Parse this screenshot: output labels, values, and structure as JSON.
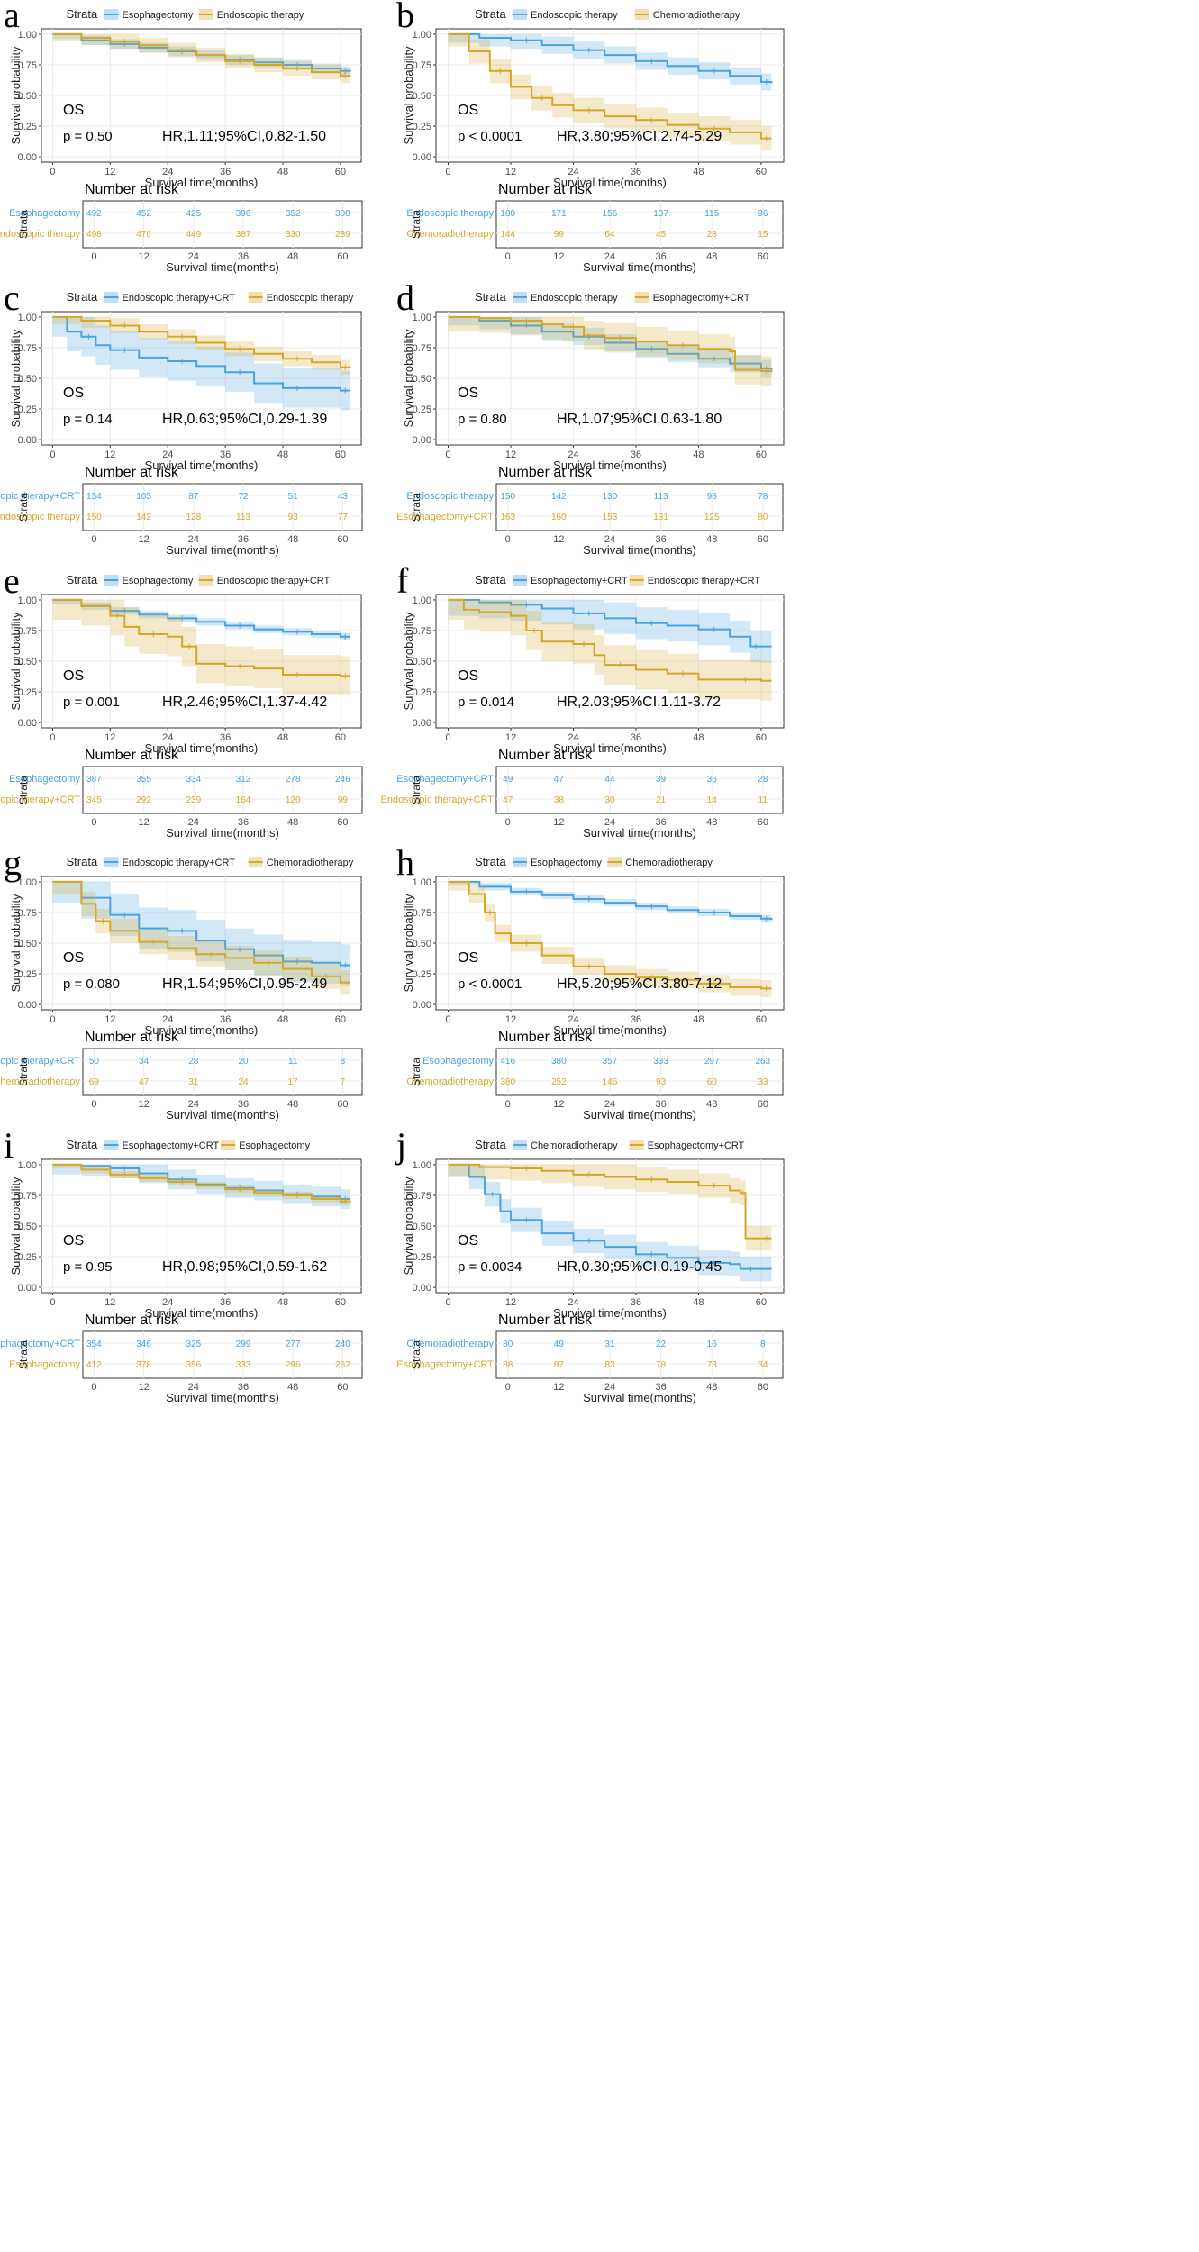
{
  "figure": {
    "common": {
      "legend_title": "Strata",
      "ylabel": "Survival probability",
      "xlabel": "Survival time(months)",
      "risk_title": "Number at risk",
      "risk_ylabel": "Strata",
      "annotation_os": "OS",
      "x_ticks": [
        0,
        12,
        24,
        36,
        48,
        60
      ],
      "y_ticks": [
        "0.00",
        "0.25",
        "0.50",
        "0.75",
        "1.00"
      ],
      "colors": {
        "series1": "#4aa3df",
        "series2": "#d4a92a",
        "grid": "#ebebeb",
        "border": "#333333"
      }
    }
  },
  "chart_data": [
    {
      "panel": "a",
      "type": "line",
      "xlim": [
        0,
        62
      ],
      "ylim": [
        0,
        1
      ],
      "title": "",
      "xlabel": "Survival time(months)",
      "ylabel": "Survival probability",
      "p_text": "p = 0.50",
      "hr_text": "HR,1.11;95%CI,0.82-1.50",
      "series": [
        {
          "name": "Esophagectomy",
          "color": "#4aa3df",
          "x": [
            0,
            6,
            12,
            18,
            24,
            30,
            36,
            42,
            48,
            54,
            60,
            62
          ],
          "y": [
            1.0,
            0.95,
            0.92,
            0.89,
            0.86,
            0.83,
            0.79,
            0.77,
            0.75,
            0.72,
            0.7,
            0.69
          ],
          "ci_width": 0.04,
          "risk": [
            492,
            452,
            425,
            396,
            352,
            308
          ]
        },
        {
          "name": "Endoscopic therapy",
          "color": "#d4a92a",
          "x": [
            0,
            6,
            12,
            18,
            24,
            30,
            36,
            42,
            48,
            54,
            60,
            62
          ],
          "y": [
            1.0,
            0.97,
            0.94,
            0.91,
            0.87,
            0.83,
            0.78,
            0.75,
            0.72,
            0.69,
            0.66,
            0.65
          ],
          "ci_width": 0.06,
          "risk": [
            498,
            476,
            449,
            387,
            330,
            289
          ]
        }
      ]
    },
    {
      "panel": "b",
      "type": "line",
      "xlim": [
        0,
        62
      ],
      "ylim": [
        0,
        1
      ],
      "title": "",
      "xlabel": "Survival time(months)",
      "ylabel": "Survival probability",
      "p_text": "p < 0.0001",
      "hr_text": "HR,3.80;95%CI,2.74-5.29",
      "series": [
        {
          "name": "Endoscopic therapy",
          "color": "#4aa3df",
          "x": [
            0,
            6,
            12,
            18,
            24,
            30,
            36,
            42,
            48,
            54,
            60,
            62
          ],
          "y": [
            1.0,
            0.97,
            0.95,
            0.91,
            0.87,
            0.83,
            0.78,
            0.74,
            0.7,
            0.66,
            0.61,
            0.6
          ],
          "ci_width": 0.07,
          "risk": [
            180,
            171,
            156,
            137,
            115,
            96
          ]
        },
        {
          "name": "Chemoradiotherapy",
          "color": "#d4a92a",
          "x": [
            0,
            4,
            8,
            12,
            16,
            20,
            24,
            30,
            36,
            42,
            48,
            54,
            60,
            62
          ],
          "y": [
            1.0,
            0.86,
            0.7,
            0.57,
            0.48,
            0.42,
            0.38,
            0.33,
            0.3,
            0.26,
            0.23,
            0.2,
            0.15,
            0.15
          ],
          "ci_width": 0.1,
          "risk": [
            144,
            99,
            64,
            45,
            28,
            15
          ]
        }
      ]
    },
    {
      "panel": "c",
      "type": "line",
      "xlim": [
        0,
        62
      ],
      "ylim": [
        0,
        1
      ],
      "title": "",
      "xlabel": "Survival time(months)",
      "ylabel": "Survival probability",
      "p_text": "p = 0.14",
      "hr_text": "HR,0.63;95%CI,0.29-1.39",
      "series": [
        {
          "name": "Endoscopic therapy+CRT",
          "color": "#4aa3df",
          "x": [
            0,
            3,
            6,
            9,
            12,
            18,
            24,
            30,
            36,
            42,
            48,
            54,
            60,
            62
          ],
          "y": [
            1.0,
            0.88,
            0.84,
            0.77,
            0.73,
            0.67,
            0.64,
            0.6,
            0.55,
            0.46,
            0.42,
            0.42,
            0.4,
            0.4
          ],
          "ci_width": 0.16,
          "risk": [
            134,
            103,
            87,
            72,
            51,
            43
          ]
        },
        {
          "name": "Endoscopic therapy",
          "color": "#d4a92a",
          "x": [
            0,
            6,
            12,
            18,
            24,
            30,
            36,
            42,
            48,
            54,
            60,
            62
          ],
          "y": [
            1.0,
            0.97,
            0.93,
            0.88,
            0.84,
            0.79,
            0.74,
            0.7,
            0.66,
            0.63,
            0.59,
            0.58
          ],
          "ci_width": 0.06,
          "risk": [
            150,
            142,
            128,
            113,
            93,
            77
          ]
        }
      ]
    },
    {
      "panel": "d",
      "type": "line",
      "xlim": [
        0,
        62
      ],
      "ylim": [
        0,
        1
      ],
      "title": "",
      "xlabel": "Survival time(months)",
      "ylabel": "Survival probability",
      "p_text": "p = 0.80",
      "hr_text": "HR,1.07;95%CI,0.63-1.80",
      "series": [
        {
          "name": "Endoscopic therapy",
          "color": "#4aa3df",
          "x": [
            0,
            6,
            12,
            18,
            24,
            30,
            36,
            42,
            48,
            54,
            60,
            62
          ],
          "y": [
            1.0,
            0.97,
            0.93,
            0.88,
            0.84,
            0.79,
            0.74,
            0.7,
            0.66,
            0.62,
            0.58,
            0.57
          ],
          "ci_width": 0.07,
          "risk": [
            150,
            142,
            130,
            113,
            93,
            78
          ]
        },
        {
          "name": "Esophagectomy+CRT",
          "color": "#d4a92a",
          "x": [
            0,
            6,
            12,
            18,
            22,
            26,
            30,
            36,
            42,
            48,
            54,
            55,
            60,
            62
          ],
          "y": [
            1.0,
            0.99,
            0.97,
            0.94,
            0.92,
            0.85,
            0.83,
            0.8,
            0.77,
            0.74,
            0.72,
            0.57,
            0.56,
            0.55
          ],
          "ci_width": 0.12,
          "risk": [
            163,
            160,
            153,
            131,
            125,
            80
          ]
        }
      ]
    },
    {
      "panel": "e",
      "type": "line",
      "xlim": [
        0,
        62
      ],
      "ylim": [
        0,
        1
      ],
      "title": "",
      "xlabel": "Survival time(months)",
      "ylabel": "Survival probability",
      "p_text": "p = 0.001",
      "hr_text": "HR,2.46;95%CI,1.37-4.42",
      "series": [
        {
          "name": "Esophagectomy",
          "color": "#4aa3df",
          "x": [
            0,
            6,
            12,
            18,
            24,
            30,
            36,
            42,
            48,
            54,
            60,
            62
          ],
          "y": [
            1.0,
            0.95,
            0.91,
            0.88,
            0.85,
            0.82,
            0.79,
            0.76,
            0.74,
            0.72,
            0.7,
            0.7
          ],
          "ci_width": 0.03,
          "risk": [
            387,
            355,
            334,
            312,
            278,
            246
          ]
        },
        {
          "name": "Endoscopic therapy+CRT",
          "color": "#d4a92a",
          "x": [
            0,
            6,
            12,
            15,
            18,
            24,
            27,
            30,
            36,
            42,
            48,
            54,
            60,
            62
          ],
          "y": [
            1.0,
            0.95,
            0.87,
            0.78,
            0.72,
            0.7,
            0.62,
            0.48,
            0.46,
            0.44,
            0.39,
            0.39,
            0.38,
            0.38
          ],
          "ci_width": 0.16,
          "risk": [
            345,
            292,
            239,
            164,
            120,
            99
          ]
        }
      ]
    },
    {
      "panel": "f",
      "type": "line",
      "xlim": [
        0,
        62
      ],
      "ylim": [
        0,
        1
      ],
      "title": "",
      "xlabel": "Survival time(months)",
      "ylabel": "Survival probability",
      "p_text": "p = 0.014",
      "hr_text": "HR,2.03;95%CI,1.11-3.72",
      "series": [
        {
          "name": "Esophagectomy+CRT",
          "color": "#4aa3df",
          "x": [
            0,
            6,
            12,
            18,
            24,
            30,
            36,
            42,
            48,
            54,
            58,
            60,
            62
          ],
          "y": [
            1.0,
            0.98,
            0.96,
            0.93,
            0.89,
            0.85,
            0.81,
            0.79,
            0.76,
            0.7,
            0.62,
            0.62,
            0.62
          ],
          "ci_width": 0.13,
          "risk": [
            49,
            47,
            44,
            39,
            36,
            28
          ]
        },
        {
          "name": "Endoscopic therapy+CRT",
          "color": "#d4a92a",
          "x": [
            0,
            3,
            6,
            12,
            15,
            18,
            24,
            28,
            30,
            36,
            42,
            48,
            54,
            60,
            62
          ],
          "y": [
            1.0,
            0.92,
            0.9,
            0.87,
            0.75,
            0.66,
            0.64,
            0.55,
            0.47,
            0.43,
            0.4,
            0.35,
            0.35,
            0.34,
            0.34
          ],
          "ci_width": 0.16,
          "risk": [
            47,
            38,
            30,
            21,
            14,
            11
          ]
        }
      ]
    },
    {
      "panel": "g",
      "type": "line",
      "xlim": [
        0,
        62
      ],
      "ylim": [
        0,
        1
      ],
      "title": "",
      "xlabel": "Survival time(months)",
      "ylabel": "Survival probability",
      "p_text": "p = 0.080",
      "hr_text": "HR,1.54;95%CI,0.95-2.49",
      "series": [
        {
          "name": "Endoscopic therapy+CRT",
          "color": "#4aa3df",
          "x": [
            0,
            6,
            12,
            18,
            24,
            30,
            36,
            42,
            48,
            54,
            60,
            62
          ],
          "y": [
            1.0,
            0.87,
            0.73,
            0.62,
            0.6,
            0.52,
            0.45,
            0.4,
            0.35,
            0.34,
            0.32,
            0.32
          ],
          "ci_width": 0.17,
          "risk": [
            50,
            34,
            28,
            20,
            11,
            8
          ]
        },
        {
          "name": "Chemoradiotherapy",
          "color": "#d4a92a",
          "x": [
            0,
            6,
            9,
            12,
            18,
            24,
            30,
            36,
            42,
            48,
            54,
            60,
            62
          ],
          "y": [
            1.0,
            0.82,
            0.68,
            0.6,
            0.51,
            0.46,
            0.41,
            0.38,
            0.34,
            0.29,
            0.23,
            0.18,
            0.18
          ],
          "ci_width": 0.1,
          "risk": [
            69,
            47,
            31,
            24,
            17,
            7
          ]
        }
      ]
    },
    {
      "panel": "h",
      "type": "line",
      "xlim": [
        0,
        62
      ],
      "ylim": [
        0,
        1
      ],
      "title": "",
      "xlabel": "Survival time(months)",
      "ylabel": "Survival probability",
      "p_text": "p < 0.0001",
      "hr_text": "HR,5.20;95%CI,3.80-7.12",
      "series": [
        {
          "name": "Esophagectomy",
          "color": "#4aa3df",
          "x": [
            0,
            6,
            12,
            18,
            24,
            30,
            36,
            42,
            48,
            54,
            60,
            62
          ],
          "y": [
            1.0,
            0.96,
            0.92,
            0.89,
            0.86,
            0.83,
            0.8,
            0.77,
            0.75,
            0.72,
            0.7,
            0.69
          ],
          "ci_width": 0.03,
          "risk": [
            416,
            380,
            357,
            333,
            297,
            263
          ]
        },
        {
          "name": "Chemoradiotherapy",
          "color": "#d4a92a",
          "x": [
            0,
            4,
            7,
            9,
            12,
            18,
            24,
            30,
            36,
            42,
            48,
            54,
            60,
            62
          ],
          "y": [
            1.0,
            0.9,
            0.75,
            0.58,
            0.5,
            0.4,
            0.31,
            0.25,
            0.22,
            0.2,
            0.17,
            0.14,
            0.13,
            0.13
          ],
          "ci_width": 0.07,
          "risk": [
            380,
            252,
            146,
            93,
            60,
            33
          ]
        }
      ]
    },
    {
      "panel": "i",
      "type": "line",
      "xlim": [
        0,
        62
      ],
      "ylim": [
        0,
        1
      ],
      "title": "",
      "xlabel": "Survival time(months)",
      "ylabel": "Survival probability",
      "p_text": "p = 0.95",
      "hr_text": "HR,0.98;95%CI,0.59-1.62",
      "series": [
        {
          "name": "Esophagectomy+CRT",
          "color": "#4aa3df",
          "x": [
            0,
            6,
            12,
            18,
            24,
            30,
            36,
            42,
            48,
            54,
            60,
            62
          ],
          "y": [
            1.0,
            0.99,
            0.97,
            0.93,
            0.88,
            0.84,
            0.81,
            0.79,
            0.76,
            0.74,
            0.72,
            0.72
          ],
          "ci_width": 0.08,
          "risk": [
            354,
            346,
            325,
            299,
            277,
            240
          ]
        },
        {
          "name": "Esophagectomy",
          "color": "#d4a92a",
          "x": [
            0,
            6,
            12,
            18,
            24,
            30,
            36,
            42,
            48,
            54,
            60,
            62
          ],
          "y": [
            1.0,
            0.96,
            0.92,
            0.89,
            0.86,
            0.83,
            0.8,
            0.77,
            0.75,
            0.72,
            0.7,
            0.69
          ],
          "ci_width": 0.03,
          "risk": [
            412,
            378,
            356,
            333,
            296,
            262
          ]
        }
      ]
    },
    {
      "panel": "j",
      "type": "line",
      "xlim": [
        0,
        62
      ],
      "ylim": [
        0,
        1
      ],
      "title": "",
      "xlabel": "Survival time(months)",
      "ylabel": "Survival probability",
      "p_text": "p = 0.0034",
      "hr_text": "HR,0.30;95%CI,0.19-0.45",
      "series": [
        {
          "name": "Chemoradiotherapy",
          "color": "#4aa3df",
          "x": [
            0,
            4,
            7,
            10,
            12,
            18,
            24,
            30,
            36,
            42,
            48,
            54,
            56,
            60,
            62
          ],
          "y": [
            1.0,
            0.9,
            0.76,
            0.62,
            0.55,
            0.44,
            0.38,
            0.33,
            0.27,
            0.24,
            0.2,
            0.19,
            0.15,
            0.15,
            0.15
          ],
          "ci_width": 0.1,
          "risk": [
            80,
            49,
            31,
            22,
            16,
            8
          ]
        },
        {
          "name": "Esophagectomy+CRT",
          "color": "#d4a92a",
          "x": [
            0,
            6,
            12,
            18,
            24,
            30,
            36,
            42,
            48,
            54,
            56,
            57,
            60,
            62
          ],
          "y": [
            1.0,
            0.98,
            0.97,
            0.95,
            0.92,
            0.9,
            0.88,
            0.86,
            0.83,
            0.79,
            0.77,
            0.4,
            0.4,
            0.4
          ],
          "ci_width": 0.1,
          "risk": [
            88,
            87,
            83,
            78,
            73,
            34
          ]
        }
      ]
    }
  ]
}
